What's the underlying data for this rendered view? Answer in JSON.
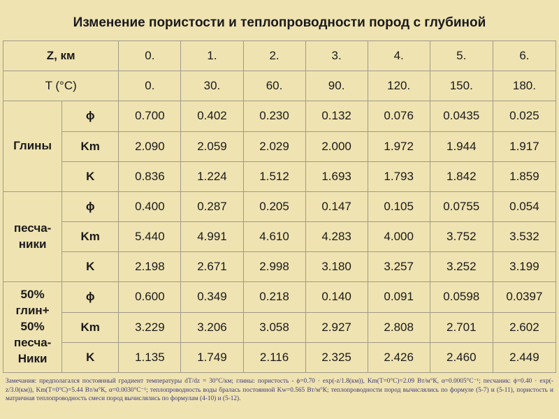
{
  "title": "Изменение пористости и теплопроводности пород с глубиной",
  "header": {
    "depth_label": "Z, км",
    "depth_values": [
      "0.",
      "1.",
      "2.",
      "3.",
      "4.",
      "5.",
      "6."
    ],
    "temp_label": "T (°C)",
    "temp_values": [
      "0.",
      "30.",
      "60.",
      "90.",
      "120.",
      "150.",
      "180."
    ]
  },
  "groups": [
    {
      "name_lines": [
        "Глины"
      ],
      "rows": [
        {
          "symbol": "ϕ",
          "values": [
            "0.700",
            "0.402",
            "0.230",
            "0.132",
            "0.076",
            "0.0435",
            "0.025"
          ]
        },
        {
          "symbol": "Km",
          "values": [
            "2.090",
            "2.059",
            "2.029",
            "2.000",
            "1.972",
            "1.944",
            "1.917"
          ]
        },
        {
          "symbol": "K",
          "values": [
            "0.836",
            "1.224",
            "1.512",
            "1.693",
            "1.793",
            "1.842",
            "1.859"
          ]
        }
      ]
    },
    {
      "name_lines": [
        "песча-",
        "ники"
      ],
      "rows": [
        {
          "symbol": "ϕ",
          "values": [
            "0.400",
            "0.287",
            "0.205",
            "0.147",
            "0.105",
            "0.0755",
            "0.054"
          ]
        },
        {
          "symbol": "Km",
          "values": [
            "5.440",
            "4.991",
            "4.610",
            "4.283",
            "4.000",
            "3.752",
            "3.532"
          ]
        },
        {
          "symbol": "K",
          "values": [
            "2.198",
            "2.671",
            "2.998",
            "3.180",
            "3.257",
            "3.252",
            "3.199"
          ]
        }
      ]
    },
    {
      "name_lines": [
        "50%",
        "глин+",
        "50%",
        "песча-",
        "Ники"
      ],
      "rows": [
        {
          "symbol": "ϕ",
          "values": [
            "0.600",
            "0.349",
            "0.218",
            "0.140",
            "0.091",
            "0.0598",
            "0.0397"
          ]
        },
        {
          "symbol": "Km",
          "values": [
            "3.229",
            "3.206",
            "3.058",
            "2.927",
            "2.808",
            "2.701",
            "2.602"
          ]
        },
        {
          "symbol": "K",
          "values": [
            "1.135",
            "1.749",
            "2.116",
            "2.325",
            "2.426",
            "2.460",
            "2.449"
          ]
        }
      ]
    }
  ],
  "notes": "Замечания: предполагался постоянный градиент температуры dT/dz = 30°C/км; глины: пористость - ϕ=0.70 · exp(-z/1.8(км)), Km(T=0°C)=2.09 Вт/м°К, α=0.0005°C⁻¹; песчаник: ϕ=0.40 · exp(-z/3.0(км)), Km(T=0°C)=5.44 Вт/м°К, α=0.0030°C⁻¹; теплопроводность воды бралась постоянной Kw=0.565 Вт/м°К; теплопроводности пород вычислялись по формуле (5-7) и (5-11), пористость и матричная теплопроводность смеси пород вычислялись по формулам (4-10) и (5-12)."
}
